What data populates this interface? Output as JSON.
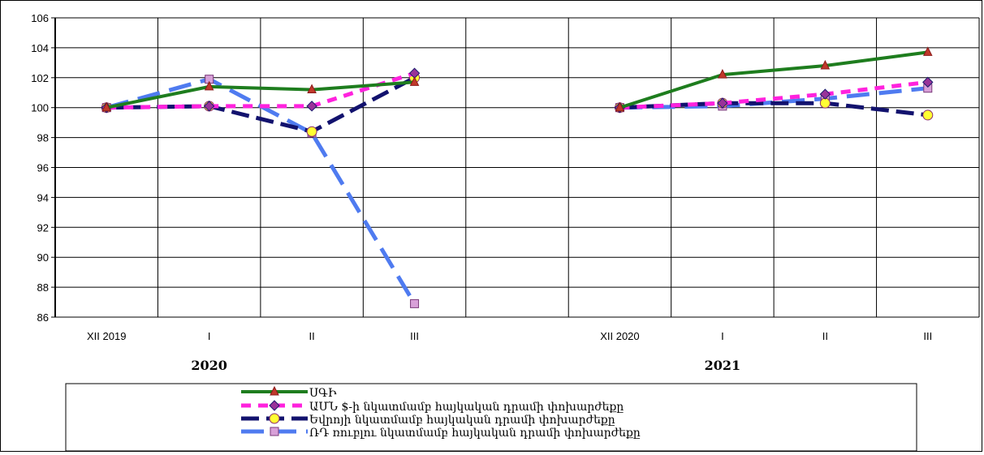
{
  "chart_data": {
    "type": "line",
    "ylim": [
      86,
      106
    ],
    "yticks": [
      86,
      88,
      90,
      92,
      94,
      96,
      98,
      100,
      102,
      104,
      106
    ],
    "grid": true,
    "legend_position": "bottom",
    "panels": [
      {
        "group_label": "2020",
        "categories": [
          "XII 2019",
          "I",
          "II",
          "III"
        ],
        "series": [
          {
            "name": "ՍԳԻ",
            "values": [
              100,
              101.4,
              101.2,
              101.7
            ]
          },
          {
            "name": "ԱՄՆ $-ի նկատմամբ հայկական դրամի փոխարժեքը",
            "values": [
              100,
              100.1,
              100.1,
              102.3
            ]
          },
          {
            "name": "Եվրոյի նկատմամբ հայկական դրամի փոխարժեքը",
            "values": [
              100,
              100.1,
              98.4,
              102.0
            ]
          },
          {
            "name": "ՌԴ ռուբլու նկատմամբ հայկական դրամի  փոխարժեքը",
            "values": [
              100,
              101.9,
              98.3,
              86.9
            ]
          }
        ]
      },
      {
        "group_label": "2021",
        "categories": [
          "XII 2020",
          "I",
          "II",
          "III"
        ],
        "series": [
          {
            "name": "ՍԳԻ",
            "values": [
              100,
              102.2,
              102.8,
              103.7
            ]
          },
          {
            "name": "ԱՄՆ $-ի նկատմամբ հայկական դրամի փոխարժեքը",
            "values": [
              100,
              100.3,
              100.9,
              101.7
            ]
          },
          {
            "name": "Եվրոյի նկատմամբ հայկական դրամի փոխարժեքը",
            "values": [
              100,
              100.3,
              100.3,
              99.5
            ]
          },
          {
            "name": "ՌԴ ռուբլու նկատմամբ հայկական դրամի  փոխարժեքը",
            "values": [
              100,
              100.1,
              100.6,
              101.3
            ]
          }
        ]
      }
    ],
    "series_styles": [
      {
        "color": "#1e7d1e",
        "dash": "",
        "marker": "triangle",
        "marker_fill": "#c0392b",
        "marker_stroke": "#8b1a1a"
      },
      {
        "color": "#ff22dd",
        "dash": "12,9",
        "marker": "diamond",
        "marker_fill": "#993399",
        "marker_stroke": "#1a1a6e"
      },
      {
        "color": "#12126e",
        "dash": "22,9",
        "marker": "circle",
        "marker_fill": "#ffff33",
        "marker_stroke": "#8b2a6b"
      },
      {
        "color": "#4f7bf0",
        "dash": "28,12",
        "marker": "square",
        "marker_fill": "#d8a0d8",
        "marker_stroke": "#7a3a7a"
      }
    ]
  }
}
